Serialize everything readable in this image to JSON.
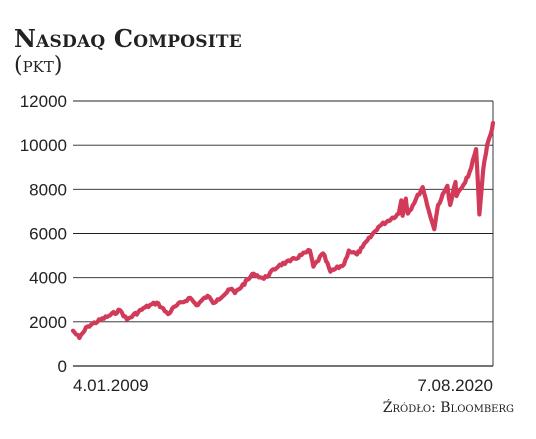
{
  "header": {
    "title": "Nasdaq Composite",
    "subtitle": "(pkt)"
  },
  "footer": {
    "source": "Źródło: Bloomberg"
  },
  "colors": {
    "series": "#d23a5a",
    "grid": "#222222",
    "text": "#222222"
  },
  "chart_data": {
    "type": "line",
    "title": "Nasdaq Composite",
    "xlabel": "",
    "ylabel": "(pkt)",
    "ylim": [
      0,
      12000
    ],
    "y_ticks": [
      0,
      2000,
      4000,
      6000,
      8000,
      10000,
      12000
    ],
    "x_labels": [
      "4.01.2009",
      "7.08.2020"
    ],
    "xlim": [
      "2009-01-04",
      "2020-08-07"
    ],
    "grid": true,
    "series": [
      {
        "x": [
          "2009-01-04",
          "2009-03-09",
          "2009-06-01",
          "2009-12-31",
          "2010-04-23",
          "2010-07-02",
          "2010-12-31",
          "2011-04-29",
          "2011-08-19",
          "2011-10-31",
          "2012-03-30",
          "2012-06-01",
          "2012-09-21",
          "2012-11-16",
          "2012-12-31",
          "2013-05-21",
          "2013-06-24",
          "2013-12-31",
          "2014-04-11",
          "2014-09-19",
          "2014-12-31",
          "2015-07-20",
          "2015-08-24",
          "2015-11-30",
          "2016-02-11",
          "2016-06-27",
          "2016-08-15",
          "2016-11-04",
          "2016-12-31",
          "2017-06-09",
          "2017-12-31",
          "2018-01-26",
          "2018-02-08",
          "2018-03-12",
          "2018-04-02",
          "2018-08-29",
          "2018-10-29",
          "2018-12-24",
          "2019-01-31",
          "2019-05-05",
          "2019-06-03",
          "2019-07-26",
          "2019-08-05",
          "2019-10-31",
          "2019-12-31",
          "2020-02-19",
          "2020-03-23",
          "2020-04-30",
          "2020-06-10",
          "2020-07-15",
          "2020-08-07"
        ],
        "values": [
          1600,
          1270,
          1800,
          2270,
          2530,
          2100,
          2650,
          2870,
          2350,
          2700,
          3090,
          2750,
          3180,
          2850,
          3020,
          3500,
          3300,
          4180,
          3950,
          4590,
          4740,
          5230,
          4500,
          5100,
          4270,
          4600,
          5230,
          5050,
          5380,
          6300,
          6900,
          7500,
          6800,
          7580,
          6900,
          8100,
          7050,
          6190,
          7280,
          8160,
          7290,
          8330,
          7700,
          8300,
          8970,
          9820,
          6860,
          8890,
          10020,
          10500,
          11010
        ]
      }
    ]
  }
}
